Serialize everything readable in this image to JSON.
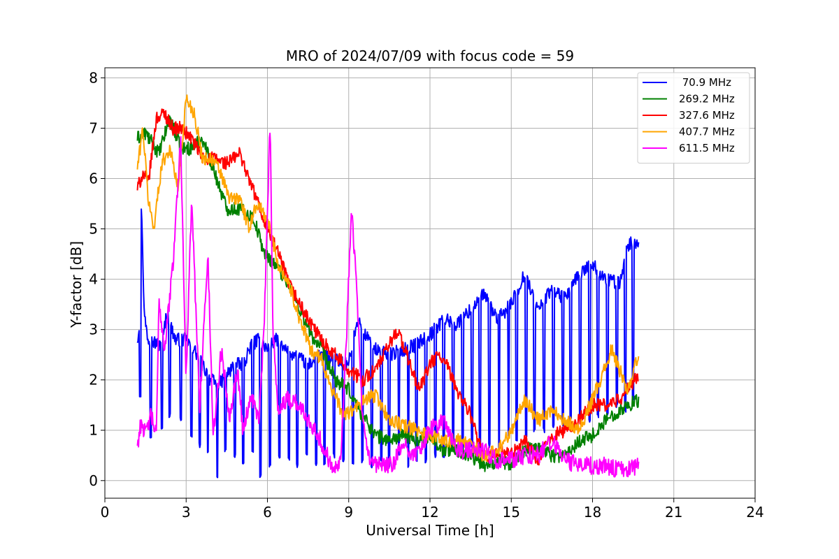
{
  "chart_data": {
    "type": "line",
    "title": "MRO of 2024/07/09 with focus code = 59",
    "xlabel": "Universal Time [h]",
    "ylabel": "Y-factor [dB]",
    "xlim": [
      0,
      24
    ],
    "ylim": [
      -0.35,
      8.2
    ],
    "xticks": [
      0,
      3,
      6,
      9,
      12,
      15,
      18,
      21,
      24
    ],
    "yticks": [
      0,
      1,
      2,
      3,
      4,
      5,
      6,
      7,
      8
    ],
    "grid": true,
    "legend_position": "top-right",
    "series": [
      {
        "name": " 70.9 MHz",
        "color": "#0000ff",
        "x": [
          1.2,
          1.3,
          1.35,
          1.45,
          1.6,
          2.0,
          2.3,
          2.6,
          3.0,
          3.3,
          3.6,
          3.9,
          4.2,
          4.5,
          4.8,
          5.1,
          5.4,
          5.7,
          6.0,
          6.3,
          6.6,
          7.0,
          7.5,
          8.0,
          8.5,
          9.0,
          9.3,
          9.6,
          10.0,
          10.5,
          11.0,
          11.5,
          12.0,
          12.5,
          13.0,
          13.5,
          14.0,
          14.5,
          15.0,
          15.5,
          16.0,
          16.5,
          17.0,
          17.5,
          18.0,
          18.5,
          19.0,
          19.3,
          19.7
        ],
        "y": [
          2.8,
          3.2,
          5.6,
          3.3,
          2.8,
          2.7,
          3.3,
          2.8,
          2.8,
          2.6,
          2.3,
          2.0,
          1.9,
          2.1,
          2.3,
          2.3,
          2.7,
          2.8,
          2.6,
          2.8,
          2.6,
          2.5,
          2.3,
          2.5,
          2.4,
          2.3,
          3.2,
          2.9,
          2.6,
          2.5,
          2.6,
          2.7,
          2.9,
          3.2,
          3.1,
          3.4,
          3.7,
          3.2,
          3.5,
          4.1,
          3.4,
          3.8,
          3.6,
          4.1,
          4.3,
          4.0,
          3.9,
          4.7,
          4.7
        ],
        "dips": [
          1.3,
          1.7,
          2.1,
          2.4,
          2.8,
          3.2,
          3.5,
          3.8,
          4.15,
          4.45,
          4.8,
          5.1,
          5.45,
          5.75,
          6.1,
          6.45,
          6.8,
          7.1,
          7.45,
          7.8,
          8.1,
          8.45,
          8.8,
          9.15,
          9.5,
          9.85,
          10.2,
          10.5,
          10.85,
          11.2,
          11.5,
          11.85,
          12.2,
          12.5,
          12.85,
          13.2,
          13.55,
          13.85,
          14.2,
          14.55,
          14.9,
          15.2,
          15.55,
          15.85,
          16.2,
          16.55,
          16.9,
          17.2,
          17.55,
          17.9,
          18.2,
          18.55,
          18.9,
          19.2,
          19.5
        ],
        "dip_depth": [
          1.7,
          0.9,
          1.0,
          1.3,
          1.2,
          0.9,
          0.7,
          0.6,
          0.1,
          0.6,
          0.5,
          0.3,
          0.6,
          0.1,
          0.3,
          0.5,
          0.4,
          0.3,
          0.5,
          0.3,
          0.3,
          0.5,
          0.4,
          0.3,
          0.4,
          0.3,
          0.4,
          0.3,
          0.5,
          0.3,
          0.4,
          0.4,
          0.5,
          0.5,
          0.7,
          0.6,
          0.7,
          0.6,
          0.7,
          0.6,
          0.9,
          0.8,
          0.9,
          1.0,
          1.0,
          1.1,
          1.1,
          1.2,
          1.3,
          1.2,
          1.3,
          1.3,
          1.5,
          1.4,
          1.6
        ]
      },
      {
        "name": "269.2 MHz",
        "color": "#008000",
        "x": [
          1.2,
          1.5,
          2.0,
          2.4,
          2.8,
          3.2,
          3.6,
          4.0,
          4.5,
          5.0,
          5.5,
          5.9,
          6.3,
          6.8,
          7.2,
          7.6,
          8.0,
          8.5,
          9.0,
          9.5,
          10.0,
          10.5,
          11.0,
          11.5,
          12.0,
          12.5,
          13.0,
          13.5,
          14.0,
          14.5,
          15.0,
          15.5,
          16.0,
          16.5,
          17.0,
          17.5,
          18.0,
          18.5,
          19.0,
          19.7
        ],
        "y": [
          6.8,
          6.9,
          6.5,
          7.2,
          6.6,
          6.6,
          6.8,
          6.2,
          5.4,
          5.4,
          5.2,
          4.5,
          4.3,
          3.9,
          3.4,
          2.9,
          2.6,
          2.0,
          1.8,
          1.3,
          0.9,
          0.8,
          0.9,
          0.8,
          0.9,
          0.6,
          0.6,
          0.5,
          0.3,
          0.4,
          0.3,
          0.6,
          0.7,
          0.5,
          0.5,
          0.8,
          0.9,
          1.2,
          1.4,
          1.6
        ]
      },
      {
        "name": "327.6 MHz",
        "color": "#ff0000",
        "x": [
          1.2,
          1.4,
          1.6,
          1.9,
          2.2,
          2.5,
          2.8,
          3.2,
          3.6,
          4.0,
          4.5,
          5.0,
          5.3,
          5.6,
          6.0,
          6.4,
          6.8,
          7.2,
          7.6,
          8.0,
          8.5,
          9.0,
          9.5,
          10.0,
          10.5,
          10.8,
          11.2,
          11.6,
          12.0,
          12.3,
          12.6,
          13.0,
          13.5,
          14.0,
          14.5,
          15.0,
          15.5,
          16.0,
          16.5,
          17.0,
          17.5,
          18.0,
          18.5,
          19.0,
          19.7
        ],
        "y": [
          5.8,
          6.1,
          5.9,
          7.2,
          7.3,
          7.0,
          7.0,
          6.8,
          6.4,
          6.4,
          6.3,
          6.5,
          6.0,
          5.6,
          5.0,
          4.5,
          3.9,
          3.5,
          3.1,
          2.8,
          2.5,
          2.2,
          2.0,
          2.2,
          2.7,
          3.0,
          2.4,
          1.8,
          2.3,
          2.5,
          2.3,
          1.8,
          1.3,
          0.4,
          0.6,
          0.5,
          0.8,
          0.4,
          0.9,
          1.0,
          1.2,
          1.5,
          1.5,
          1.6,
          2.1
        ]
      },
      {
        "name": "407.7 MHz",
        "color": "#ffa500",
        "x": [
          1.2,
          1.4,
          1.6,
          1.8,
          2.1,
          2.4,
          2.7,
          3.0,
          3.3,
          3.6,
          3.9,
          4.2,
          4.6,
          5.0,
          5.3,
          5.6,
          6.0,
          6.4,
          6.8,
          7.2,
          7.6,
          8.0,
          8.4,
          8.8,
          9.2,
          9.6,
          10.0,
          10.5,
          11.0,
          11.5,
          12.0,
          12.5,
          13.0,
          13.5,
          14.0,
          14.5,
          15.0,
          15.5,
          16.0,
          16.5,
          17.0,
          17.5,
          17.9,
          18.3,
          18.7,
          19.0,
          19.3,
          19.7
        ],
        "y": [
          6.2,
          7.0,
          5.6,
          5.0,
          6.3,
          6.6,
          5.8,
          7.6,
          7.3,
          6.4,
          6.4,
          6.2,
          5.6,
          5.6,
          5.0,
          5.5,
          5.2,
          4.3,
          3.9,
          3.2,
          2.6,
          2.4,
          1.8,
          1.3,
          1.4,
          1.6,
          1.7,
          1.2,
          1.1,
          1.0,
          0.9,
          0.8,
          0.8,
          0.7,
          0.5,
          0.6,
          1.0,
          1.6,
          1.2,
          1.4,
          1.2,
          1.0,
          1.5,
          2.0,
          2.6,
          2.2,
          1.8,
          2.5
        ]
      },
      {
        "name": "611.5 MHz",
        "color": "#ff00ff",
        "x": [
          1.2,
          1.35,
          1.5,
          1.7,
          1.9,
          2.0,
          2.2,
          2.5,
          2.8,
          3.0,
          3.2,
          3.5,
          3.8,
          4.0,
          4.3,
          4.6,
          4.9,
          5.1,
          5.4,
          5.7,
          5.9,
          6.1,
          6.2,
          6.4,
          6.7,
          7.0,
          7.4,
          7.8,
          8.1,
          8.4,
          8.7,
          8.9,
          9.1,
          9.3,
          9.5,
          9.8,
          10.2,
          10.6,
          11.0,
          11.5,
          12.0,
          12.5,
          13.0,
          13.5,
          14.0,
          14.5,
          15.0,
          15.5,
          16.0,
          16.5,
          17.0,
          17.5,
          18.0,
          18.5,
          19.0,
          19.7
        ],
        "y": [
          0.7,
          1.2,
          0.9,
          1.3,
          0.9,
          3.6,
          2.6,
          4.2,
          6.8,
          2.0,
          5.6,
          1.5,
          4.5,
          0.9,
          2.6,
          1.3,
          2.2,
          1.0,
          1.7,
          1.2,
          3.4,
          7.2,
          3.0,
          1.4,
          1.6,
          1.6,
          1.3,
          1.0,
          0.6,
          0.3,
          0.4,
          2.6,
          5.5,
          3.8,
          1.2,
          0.3,
          0.3,
          0.3,
          0.7,
          0.5,
          1.0,
          1.2,
          0.6,
          0.6,
          0.6,
          0.4,
          0.4,
          0.5,
          0.5,
          0.8,
          0.4,
          0.3,
          0.3,
          0.3,
          0.2,
          0.3
        ]
      }
    ]
  }
}
